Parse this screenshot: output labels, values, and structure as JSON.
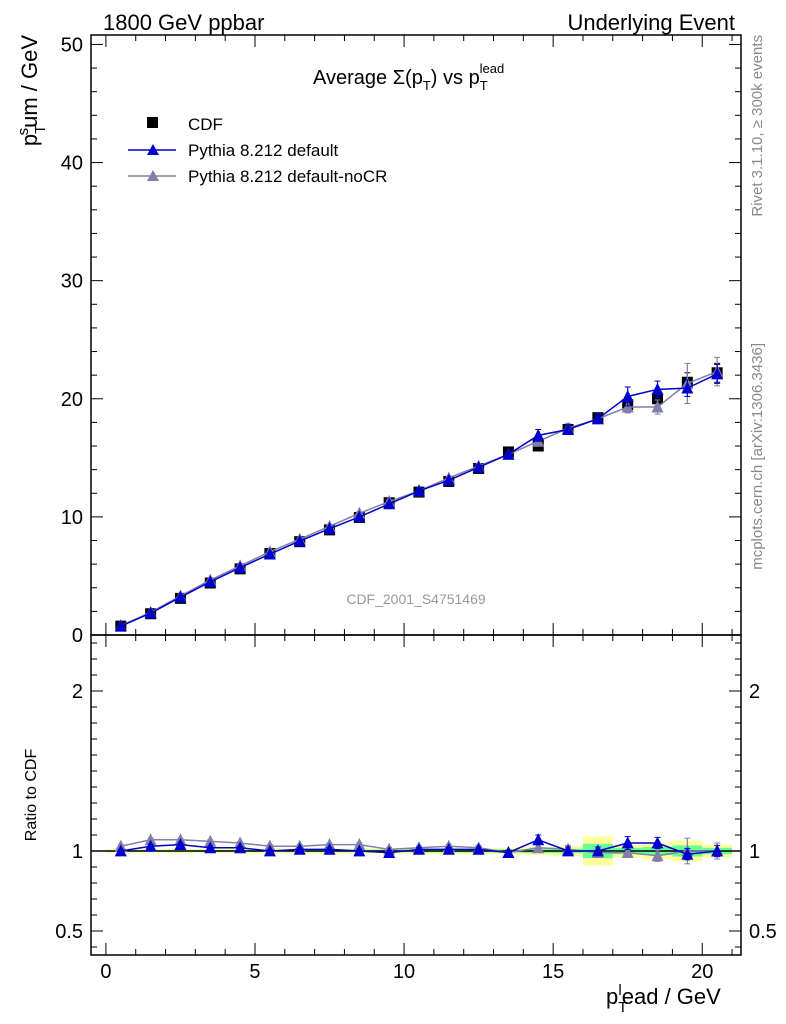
{
  "header": {
    "left": "1800 GeV ppbar",
    "right": "Underlying Event"
  },
  "side": {
    "rivet": "Rivet 3.1.10, ≥ 300k events",
    "mcplots": "mcplots.cern.ch [arXiv:1306.3436]"
  },
  "watermark": "CDF_2001_S4751469",
  "chart_data": [
    {
      "type": "scatter",
      "title": "Average Σ(p_T) vs p_T^lead",
      "ylabel": "p_T^sum / GeV",
      "xlim": [
        -0.5,
        21.3
      ],
      "ylim": [
        0,
        50.8
      ],
      "yticks": [
        0,
        10,
        20,
        30,
        40,
        50
      ],
      "legend": [
        "CDF",
        "Pythia 8.212 default",
        "Pythia 8.212 default-noCR"
      ],
      "legend_position": "top-left",
      "x": [
        0.5,
        1.5,
        2.5,
        3.5,
        4.5,
        5.5,
        6.5,
        7.5,
        8.5,
        9.5,
        10.5,
        11.5,
        12.5,
        13.5,
        14.5,
        15.5,
        16.5,
        17.5,
        18.5,
        19.5,
        20.5
      ],
      "series": [
        {
          "name": "CDF",
          "color": "#000000",
          "marker": "square",
          "values": [
            0.75,
            1.8,
            3.1,
            4.4,
            5.6,
            6.9,
            7.9,
            8.9,
            9.95,
            11.2,
            12.1,
            13.0,
            14.1,
            15.5,
            16.0,
            17.4,
            18.4,
            19.5,
            20.0,
            21.4,
            22.2
          ],
          "errors": [
            0.05,
            0.05,
            0.05,
            0.08,
            0.1,
            0.1,
            0.1,
            0.1,
            0.15,
            0.15,
            0.15,
            0.2,
            0.2,
            0.25,
            0.3,
            0.3,
            0.4,
            0.5,
            0.6,
            0.8,
            0.8
          ]
        },
        {
          "name": "Pythia 8.212 default",
          "color": "#0000cc",
          "marker": "triangle",
          "values": [
            0.75,
            1.85,
            3.2,
            4.5,
            5.7,
            6.85,
            7.95,
            9.0,
            10.0,
            11.1,
            12.2,
            13.1,
            14.2,
            15.3,
            16.9,
            17.4,
            18.3,
            20.2,
            20.8,
            20.9,
            22.1
          ],
          "errors": [
            0.05,
            0.05,
            0.05,
            0.06,
            0.08,
            0.08,
            0.1,
            0.1,
            0.12,
            0.12,
            0.15,
            0.15,
            0.2,
            0.2,
            0.5,
            0.4,
            0.4,
            0.8,
            0.7,
            0.7,
            0.8
          ]
        },
        {
          "name": "Pythia 8.212 default-noCR",
          "color": "#7f7fa8",
          "marker": "triangle",
          "values": [
            0.78,
            1.92,
            3.3,
            4.65,
            5.85,
            7.05,
            8.1,
            9.2,
            10.3,
            11.3,
            12.2,
            13.3,
            14.3,
            15.3,
            16.4,
            17.5,
            18.3,
            19.3,
            19.3,
            21.3,
            22.3
          ],
          "errors": [
            0.05,
            0.05,
            0.05,
            0.06,
            0.08,
            0.08,
            0.1,
            0.1,
            0.12,
            0.12,
            0.15,
            0.15,
            0.2,
            0.2,
            0.3,
            0.4,
            0.4,
            0.5,
            0.6,
            1.7,
            1.2
          ]
        }
      ]
    },
    {
      "type": "scatter",
      "ylabel": "Ratio to CDF",
      "xlabel": "p_T^lead / GeV",
      "xlim": [
        -0.5,
        21.3
      ],
      "ylim": [
        0.35,
        2.35
      ],
      "xticks": [
        0,
        5,
        10,
        15,
        20
      ],
      "yticks": [
        0.5,
        1,
        2
      ],
      "x": [
        0.5,
        1.5,
        2.5,
        3.5,
        4.5,
        5.5,
        6.5,
        7.5,
        8.5,
        9.5,
        10.5,
        11.5,
        12.5,
        13.5,
        14.5,
        15.5,
        16.5,
        17.5,
        18.5,
        19.5,
        20.5
      ],
      "bands": {
        "stat_color": "#66ff99",
        "total_color": "#ffff99",
        "stat_halfwidth": [
          0.005,
          0.005,
          0.005,
          0.006,
          0.006,
          0.006,
          0.007,
          0.007,
          0.008,
          0.008,
          0.008,
          0.009,
          0.009,
          0.01,
          0.012,
          0.014,
          0.045,
          0.02,
          0.025,
          0.035,
          0.02
        ],
        "total_halfwidth": [
          0.01,
          0.01,
          0.012,
          0.012,
          0.014,
          0.015,
          0.015,
          0.016,
          0.016,
          0.017,
          0.017,
          0.018,
          0.018,
          0.02,
          0.025,
          0.03,
          0.09,
          0.04,
          0.05,
          0.065,
          0.04
        ]
      },
      "series": [
        {
          "name": "Pythia 8.212 default",
          "color": "#0000cc",
          "marker": "triangle",
          "values": [
            1.0,
            1.03,
            1.04,
            1.02,
            1.02,
            1.0,
            1.01,
            1.01,
            1.0,
            0.99,
            1.01,
            1.01,
            1.01,
            0.99,
            1.07,
            1.0,
            1.0,
            1.05,
            1.05,
            0.98,
            1.0
          ],
          "errors": [
            0.01,
            0.01,
            0.01,
            0.01,
            0.01,
            0.01,
            0.01,
            0.01,
            0.012,
            0.012,
            0.012,
            0.012,
            0.015,
            0.015,
            0.03,
            0.025,
            0.025,
            0.04,
            0.035,
            0.035,
            0.035
          ]
        },
        {
          "name": "Pythia 8.212 default-noCR",
          "color": "#7f7fa8",
          "marker": "triangle",
          "values": [
            1.03,
            1.07,
            1.07,
            1.06,
            1.05,
            1.03,
            1.03,
            1.04,
            1.04,
            1.01,
            1.02,
            1.03,
            1.02,
            0.99,
            1.02,
            1.01,
            0.99,
            0.99,
            0.97,
            1.0,
            1.0
          ],
          "errors": [
            0.01,
            0.01,
            0.01,
            0.01,
            0.01,
            0.01,
            0.01,
            0.01,
            0.012,
            0.012,
            0.012,
            0.012,
            0.015,
            0.015,
            0.02,
            0.025,
            0.025,
            0.03,
            0.035,
            0.08,
            0.05
          ]
        }
      ]
    }
  ]
}
